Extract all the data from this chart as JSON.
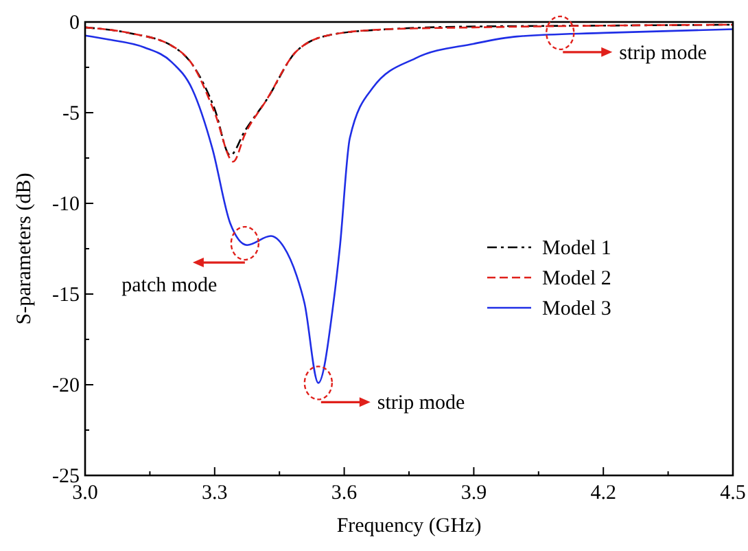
{
  "chart_data": {
    "type": "line",
    "xlabel": "Frequency (GHz)",
    "ylabel": "S-parameters (dB)",
    "xlim": [
      3.0,
      4.5
    ],
    "ylim": [
      -25,
      0
    ],
    "xticks": [
      {
        "value": 3.0,
        "label": "3.0"
      },
      {
        "value": 3.15,
        "label": null
      },
      {
        "value": 3.3,
        "label": "3.3"
      },
      {
        "value": 3.45,
        "label": null
      },
      {
        "value": 3.6,
        "label": "3.6"
      },
      {
        "value": 3.75,
        "label": null
      },
      {
        "value": 3.9,
        "label": "3.9"
      },
      {
        "value": 4.05,
        "label": null
      },
      {
        "value": 4.2,
        "label": "4.2"
      },
      {
        "value": 4.35,
        "label": null
      },
      {
        "value": 4.5,
        "label": "4.5"
      }
    ],
    "yticks": [
      -25,
      {
        "value": -22.5,
        "label": null
      },
      -20,
      {
        "value": -17.5,
        "label": null
      },
      -15,
      {
        "value": -12.5,
        "label": null
      },
      -10,
      {
        "value": -7.5,
        "label": null
      },
      -5,
      {
        "value": -2.5,
        "label": null
      },
      0
    ],
    "legend": "right",
    "grid": false,
    "series": [
      {
        "name": "Model 1",
        "color": "#000000",
        "line_style": "dashdot",
        "x": [
          3.0,
          3.1,
          3.2,
          3.25,
          3.3,
          3.336,
          3.37,
          3.42,
          3.49,
          3.57,
          3.7,
          3.9,
          4.2,
          4.5
        ],
        "values": [
          -0.3,
          -0.6,
          -1.3,
          -2.4,
          -4.8,
          -7.35,
          -6.0,
          -4.3,
          -1.6,
          -0.7,
          -0.4,
          -0.25,
          -0.2,
          -0.15
        ]
      },
      {
        "name": "Model 2",
        "color": "#e0201b",
        "line_style": "dashed",
        "x": [
          3.0,
          3.1,
          3.2,
          3.25,
          3.3,
          3.343,
          3.37,
          3.42,
          3.49,
          3.57,
          3.7,
          3.9,
          4.2,
          4.5
        ],
        "values": [
          -0.3,
          -0.6,
          -1.3,
          -2.4,
          -5.0,
          -7.7,
          -6.2,
          -4.3,
          -1.6,
          -0.7,
          -0.4,
          -0.3,
          -0.2,
          -0.15
        ]
      },
      {
        "name": "Model 3",
        "color": "#1f2ee6",
        "line_style": "solid",
        "x": [
          3.0,
          3.05,
          3.137,
          3.2,
          3.248,
          3.295,
          3.336,
          3.375,
          3.43,
          3.46,
          3.49,
          3.508,
          3.54,
          3.575,
          3.59,
          3.613,
          3.667,
          3.765,
          3.9,
          4.0,
          4.2,
          4.5
        ],
        "values": [
          -0.75,
          -0.95,
          -1.4,
          -2.2,
          -3.7,
          -7.0,
          -11.1,
          -12.3,
          -11.8,
          -12.4,
          -14.0,
          -15.5,
          -19.9,
          -15.5,
          -12.4,
          -6.4,
          -3.6,
          -2.0,
          -1.2,
          -0.8,
          -0.6,
          -0.4
        ]
      }
    ],
    "annotations": [
      {
        "text": "patch mode",
        "x": 3.37,
        "y": -12.2
      },
      {
        "text": "strip mode",
        "x": 3.54,
        "y": -19.9
      },
      {
        "text": "strip mode",
        "x": 4.1,
        "y": -0.6
      }
    ]
  }
}
